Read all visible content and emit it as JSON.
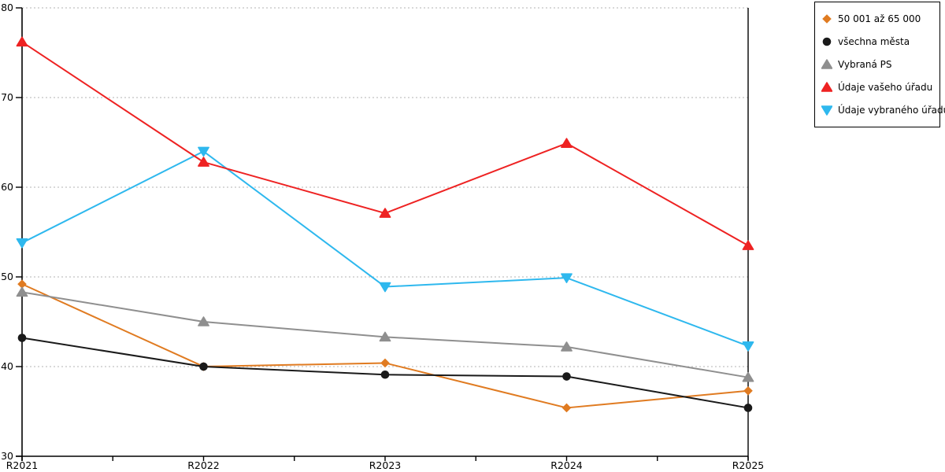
{
  "chart_data": {
    "type": "line",
    "title": "",
    "xlabel": "",
    "ylabel": "",
    "categories": [
      "R2021",
      "R2022",
      "R2023",
      "R2024",
      "R2025"
    ],
    "y_ticks": [
      30,
      40,
      50,
      60,
      70,
      80
    ],
    "ylim": [
      30,
      80
    ],
    "grid": "horizontal dotted lines at 40,50,60,70,80",
    "legend_position": "outside-top-right",
    "series": [
      {
        "name": "50 001 až 65 000",
        "marker": "diamond",
        "color": "#e07b21",
        "values": [
          49.2,
          40.0,
          40.4,
          35.4,
          37.3
        ]
      },
      {
        "name": "všechna města",
        "marker": "circle",
        "color": "#1a1a1a",
        "values": [
          43.2,
          40.0,
          39.1,
          38.9,
          35.4
        ]
      },
      {
        "name": "Vybraná PS",
        "marker": "triangle-up",
        "color": "#8f8f8f",
        "values": [
          48.3,
          45.0,
          43.3,
          42.2,
          38.8
        ]
      },
      {
        "name": "Údaje vašeho úřadu",
        "marker": "triangle-up",
        "color": "#ee2222",
        "values": [
          76.2,
          62.8,
          57.1,
          64.9,
          53.5
        ]
      },
      {
        "name": "Údaje vybraného úřadu",
        "marker": "triangle-down",
        "color": "#2eb8ee",
        "values": [
          53.8,
          64.0,
          48.9,
          49.9,
          42.3
        ]
      }
    ],
    "colors": {
      "axis": "#000000",
      "gridline": "#b3b3b3",
      "background": "#ffffff",
      "tick_label": "#000000"
    }
  }
}
